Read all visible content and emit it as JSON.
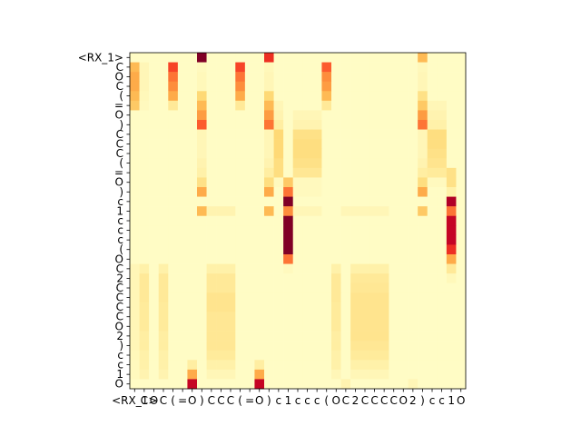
{
  "chart_data": {
    "type": "heatmap",
    "title": "",
    "xlabel": "",
    "ylabel": "",
    "colormap": "YlOrRd",
    "color_stops": [
      "#ffffcc",
      "#ffeda0",
      "#fed976",
      "#feb24c",
      "#fd8d3c",
      "#fc4e2a",
      "#e31a1c",
      "#bd0026",
      "#800026"
    ],
    "x_tokens": [
      "<RX_1>",
      "C",
      "O",
      "C",
      "(",
      "=",
      "O",
      ")",
      "C",
      "C",
      "C",
      "(",
      "=",
      "O",
      ")",
      "c",
      "1",
      "c",
      "c",
      "c",
      "(",
      "O",
      "C",
      "2",
      "C",
      "C",
      "C",
      "C",
      "O",
      "2",
      ")",
      "c",
      "c",
      "1",
      "O"
    ],
    "y_tokens": [
      "<RX_1>",
      "C",
      "O",
      "C",
      "(",
      "=",
      "O",
      ")",
      "C",
      "C",
      "C",
      "(",
      "=",
      "O",
      ")",
      "c",
      "1",
      "c",
      "c",
      "c",
      "(",
      "O",
      "C",
      "2",
      "C",
      "C",
      "C",
      "C",
      "O",
      "2",
      ")",
      "c",
      "c",
      "1",
      "O"
    ],
    "values": [
      [
        0.02,
        0.02,
        0.02,
        0.02,
        0.02,
        0.02,
        0.02,
        1.0,
        0.02,
        0.02,
        0.02,
        0.02,
        0.02,
        0.02,
        0.7,
        0.02,
        0.02,
        0.02,
        0.02,
        0.02,
        0.02,
        0.02,
        0.02,
        0.02,
        0.02,
        0.02,
        0.02,
        0.02,
        0.02,
        0.02,
        0.35,
        0.02,
        0.02,
        0.02,
        0.02
      ],
      [
        0.35,
        0.06,
        0.02,
        0.02,
        0.65,
        0.02,
        0.02,
        0.04,
        0.02,
        0.02,
        0.02,
        0.65,
        0.02,
        0.02,
        0.05,
        0.02,
        0.02,
        0.02,
        0.02,
        0.02,
        0.6,
        0.02,
        0.02,
        0.02,
        0.02,
        0.02,
        0.02,
        0.02,
        0.02,
        0.02,
        0.05,
        0.02,
        0.02,
        0.02,
        0.02
      ],
      [
        0.4,
        0.06,
        0.02,
        0.02,
        0.55,
        0.02,
        0.02,
        0.05,
        0.02,
        0.02,
        0.02,
        0.55,
        0.02,
        0.02,
        0.06,
        0.02,
        0.02,
        0.02,
        0.02,
        0.02,
        0.5,
        0.02,
        0.02,
        0.02,
        0.02,
        0.02,
        0.02,
        0.02,
        0.02,
        0.02,
        0.06,
        0.02,
        0.02,
        0.02,
        0.02
      ],
      [
        0.4,
        0.06,
        0.02,
        0.02,
        0.5,
        0.02,
        0.02,
        0.05,
        0.02,
        0.02,
        0.02,
        0.5,
        0.02,
        0.02,
        0.06,
        0.02,
        0.02,
        0.02,
        0.02,
        0.02,
        0.45,
        0.02,
        0.02,
        0.02,
        0.02,
        0.02,
        0.02,
        0.02,
        0.02,
        0.02,
        0.06,
        0.02,
        0.02,
        0.02,
        0.02
      ],
      [
        0.35,
        0.05,
        0.02,
        0.02,
        0.4,
        0.02,
        0.02,
        0.25,
        0.02,
        0.02,
        0.02,
        0.4,
        0.02,
        0.02,
        0.25,
        0.02,
        0.02,
        0.02,
        0.02,
        0.02,
        0.35,
        0.02,
        0.02,
        0.02,
        0.02,
        0.02,
        0.02,
        0.02,
        0.02,
        0.02,
        0.2,
        0.02,
        0.02,
        0.02,
        0.02
      ],
      [
        0.3,
        0.04,
        0.02,
        0.02,
        0.15,
        0.02,
        0.02,
        0.35,
        0.02,
        0.02,
        0.02,
        0.15,
        0.02,
        0.02,
        0.35,
        0.06,
        0.02,
        0.02,
        0.02,
        0.02,
        0.15,
        0.02,
        0.02,
        0.02,
        0.02,
        0.02,
        0.02,
        0.02,
        0.02,
        0.02,
        0.3,
        0.06,
        0.06,
        0.02,
        0.02
      ],
      [
        0.02,
        0.02,
        0.02,
        0.02,
        0.02,
        0.02,
        0.02,
        0.45,
        0.02,
        0.02,
        0.02,
        0.02,
        0.02,
        0.02,
        0.45,
        0.08,
        0.02,
        0.06,
        0.06,
        0.06,
        0.02,
        0.02,
        0.02,
        0.02,
        0.02,
        0.02,
        0.02,
        0.02,
        0.02,
        0.02,
        0.45,
        0.08,
        0.08,
        0.02,
        0.02
      ],
      [
        0.02,
        0.02,
        0.02,
        0.02,
        0.02,
        0.02,
        0.02,
        0.6,
        0.02,
        0.02,
        0.02,
        0.02,
        0.02,
        0.02,
        0.55,
        0.12,
        0.02,
        0.08,
        0.08,
        0.08,
        0.02,
        0.02,
        0.02,
        0.02,
        0.02,
        0.02,
        0.02,
        0.02,
        0.02,
        0.02,
        0.55,
        0.1,
        0.1,
        0.02,
        0.02
      ],
      [
        0.02,
        0.02,
        0.02,
        0.02,
        0.02,
        0.02,
        0.02,
        0.06,
        0.02,
        0.02,
        0.02,
        0.02,
        0.02,
        0.02,
        0.06,
        0.25,
        0.02,
        0.2,
        0.2,
        0.2,
        0.02,
        0.02,
        0.02,
        0.02,
        0.02,
        0.02,
        0.02,
        0.02,
        0.02,
        0.02,
        0.06,
        0.22,
        0.22,
        0.02,
        0.02
      ],
      [
        0.02,
        0.02,
        0.02,
        0.02,
        0.02,
        0.02,
        0.02,
        0.06,
        0.02,
        0.02,
        0.02,
        0.02,
        0.02,
        0.02,
        0.06,
        0.25,
        0.02,
        0.22,
        0.22,
        0.22,
        0.02,
        0.02,
        0.02,
        0.02,
        0.02,
        0.02,
        0.02,
        0.02,
        0.02,
        0.02,
        0.06,
        0.22,
        0.22,
        0.02,
        0.02
      ],
      [
        0.02,
        0.02,
        0.02,
        0.02,
        0.02,
        0.02,
        0.02,
        0.06,
        0.02,
        0.02,
        0.02,
        0.02,
        0.02,
        0.02,
        0.06,
        0.25,
        0.02,
        0.22,
        0.22,
        0.22,
        0.02,
        0.02,
        0.02,
        0.02,
        0.02,
        0.02,
        0.02,
        0.02,
        0.02,
        0.02,
        0.06,
        0.2,
        0.2,
        0.02,
        0.02
      ],
      [
        0.02,
        0.02,
        0.02,
        0.02,
        0.02,
        0.02,
        0.02,
        0.08,
        0.02,
        0.02,
        0.02,
        0.02,
        0.02,
        0.02,
        0.08,
        0.22,
        0.02,
        0.2,
        0.2,
        0.2,
        0.02,
        0.02,
        0.02,
        0.02,
        0.02,
        0.02,
        0.02,
        0.02,
        0.02,
        0.02,
        0.08,
        0.18,
        0.18,
        0.02,
        0.02
      ],
      [
        0.02,
        0.02,
        0.02,
        0.02,
        0.02,
        0.02,
        0.02,
        0.1,
        0.02,
        0.02,
        0.02,
        0.02,
        0.02,
        0.02,
        0.12,
        0.22,
        0.02,
        0.16,
        0.16,
        0.16,
        0.02,
        0.02,
        0.02,
        0.02,
        0.02,
        0.02,
        0.02,
        0.02,
        0.02,
        0.02,
        0.12,
        0.14,
        0.14,
        0.2,
        0.02
      ],
      [
        0.02,
        0.02,
        0.02,
        0.02,
        0.02,
        0.02,
        0.02,
        0.2,
        0.02,
        0.02,
        0.02,
        0.02,
        0.02,
        0.02,
        0.22,
        0.04,
        0.3,
        0.04,
        0.04,
        0.04,
        0.02,
        0.02,
        0.02,
        0.02,
        0.02,
        0.02,
        0.02,
        0.02,
        0.02,
        0.02,
        0.22,
        0.04,
        0.04,
        0.2,
        0.02
      ],
      [
        0.02,
        0.02,
        0.02,
        0.02,
        0.02,
        0.02,
        0.02,
        0.4,
        0.02,
        0.02,
        0.02,
        0.02,
        0.02,
        0.02,
        0.4,
        0.02,
        0.55,
        0.04,
        0.04,
        0.04,
        0.02,
        0.02,
        0.02,
        0.02,
        0.02,
        0.02,
        0.02,
        0.02,
        0.02,
        0.02,
        0.4,
        0.02,
        0.02,
        0.1,
        0.02
      ],
      [
        0.02,
        0.02,
        0.02,
        0.02,
        0.02,
        0.02,
        0.02,
        0.02,
        0.02,
        0.02,
        0.02,
        0.02,
        0.02,
        0.02,
        0.02,
        0.02,
        1.0,
        0.02,
        0.02,
        0.02,
        0.02,
        0.02,
        0.02,
        0.02,
        0.02,
        0.02,
        0.02,
        0.02,
        0.02,
        0.02,
        0.02,
        0.02,
        0.02,
        0.9,
        0.02
      ],
      [
        0.02,
        0.02,
        0.02,
        0.02,
        0.02,
        0.02,
        0.02,
        0.35,
        0.08,
        0.08,
        0.08,
        0.02,
        0.02,
        0.02,
        0.35,
        0.02,
        0.5,
        0.06,
        0.06,
        0.06,
        0.02,
        0.02,
        0.06,
        0.06,
        0.06,
        0.06,
        0.06,
        0.02,
        0.02,
        0.02,
        0.3,
        0.02,
        0.02,
        0.55,
        0.02
      ],
      [
        0.02,
        0.02,
        0.02,
        0.02,
        0.02,
        0.02,
        0.02,
        0.02,
        0.02,
        0.02,
        0.02,
        0.02,
        0.02,
        0.02,
        0.02,
        0.02,
        1.0,
        0.02,
        0.02,
        0.02,
        0.02,
        0.02,
        0.02,
        0.02,
        0.02,
        0.02,
        0.02,
        0.02,
        0.02,
        0.02,
        0.02,
        0.02,
        0.02,
        0.85,
        0.02
      ],
      [
        0.02,
        0.02,
        0.02,
        0.02,
        0.02,
        0.02,
        0.02,
        0.02,
        0.02,
        0.02,
        0.02,
        0.02,
        0.02,
        0.02,
        0.02,
        0.02,
        1.0,
        0.02,
        0.02,
        0.02,
        0.02,
        0.02,
        0.02,
        0.02,
        0.02,
        0.02,
        0.02,
        0.02,
        0.02,
        0.02,
        0.02,
        0.02,
        0.02,
        0.85,
        0.02
      ],
      [
        0.02,
        0.02,
        0.02,
        0.02,
        0.02,
        0.02,
        0.02,
        0.02,
        0.02,
        0.02,
        0.02,
        0.02,
        0.02,
        0.02,
        0.02,
        0.02,
        1.0,
        0.02,
        0.02,
        0.02,
        0.02,
        0.02,
        0.02,
        0.02,
        0.02,
        0.02,
        0.02,
        0.02,
        0.02,
        0.02,
        0.02,
        0.02,
        0.02,
        0.85,
        0.02
      ],
      [
        0.02,
        0.02,
        0.02,
        0.02,
        0.02,
        0.02,
        0.02,
        0.02,
        0.02,
        0.02,
        0.02,
        0.02,
        0.02,
        0.02,
        0.02,
        0.02,
        1.0,
        0.02,
        0.02,
        0.02,
        0.02,
        0.02,
        0.02,
        0.02,
        0.02,
        0.02,
        0.02,
        0.02,
        0.02,
        0.02,
        0.02,
        0.02,
        0.02,
        0.7,
        0.02
      ],
      [
        0.02,
        0.02,
        0.02,
        0.02,
        0.02,
        0.02,
        0.02,
        0.02,
        0.02,
        0.02,
        0.02,
        0.02,
        0.02,
        0.02,
        0.02,
        0.02,
        0.55,
        0.02,
        0.02,
        0.02,
        0.02,
        0.02,
        0.02,
        0.02,
        0.02,
        0.02,
        0.02,
        0.02,
        0.02,
        0.02,
        0.02,
        0.02,
        0.02,
        0.4,
        0.02
      ],
      [
        0.06,
        0.1,
        0.02,
        0.1,
        0.02,
        0.02,
        0.02,
        0.02,
        0.1,
        0.1,
        0.1,
        0.02,
        0.02,
        0.02,
        0.02,
        0.02,
        0.04,
        0.02,
        0.02,
        0.02,
        0.02,
        0.1,
        0.02,
        0.1,
        0.1,
        0.1,
        0.1,
        0.02,
        0.02,
        0.02,
        0.02,
        0.02,
        0.02,
        0.15,
        0.02
      ],
      [
        0.06,
        0.15,
        0.02,
        0.15,
        0.02,
        0.02,
        0.02,
        0.02,
        0.15,
        0.15,
        0.15,
        0.02,
        0.02,
        0.02,
        0.02,
        0.02,
        0.02,
        0.02,
        0.02,
        0.02,
        0.02,
        0.15,
        0.02,
        0.15,
        0.15,
        0.15,
        0.15,
        0.02,
        0.02,
        0.02,
        0.02,
        0.02,
        0.02,
        0.05,
        0.02
      ],
      [
        0.06,
        0.15,
        0.02,
        0.15,
        0.02,
        0.02,
        0.02,
        0.02,
        0.15,
        0.15,
        0.15,
        0.02,
        0.02,
        0.02,
        0.02,
        0.02,
        0.02,
        0.02,
        0.02,
        0.02,
        0.02,
        0.15,
        0.02,
        0.16,
        0.16,
        0.16,
        0.16,
        0.02,
        0.02,
        0.02,
        0.02,
        0.02,
        0.02,
        0.02,
        0.02
      ],
      [
        0.06,
        0.15,
        0.02,
        0.15,
        0.02,
        0.02,
        0.02,
        0.02,
        0.18,
        0.18,
        0.18,
        0.02,
        0.02,
        0.02,
        0.02,
        0.02,
        0.02,
        0.02,
        0.02,
        0.02,
        0.02,
        0.15,
        0.02,
        0.18,
        0.18,
        0.18,
        0.18,
        0.02,
        0.02,
        0.02,
        0.02,
        0.02,
        0.02,
        0.02,
        0.02
      ],
      [
        0.06,
        0.14,
        0.02,
        0.14,
        0.02,
        0.02,
        0.02,
        0.02,
        0.18,
        0.18,
        0.18,
        0.02,
        0.02,
        0.02,
        0.02,
        0.02,
        0.02,
        0.02,
        0.02,
        0.02,
        0.02,
        0.14,
        0.02,
        0.18,
        0.18,
        0.18,
        0.18,
        0.02,
        0.02,
        0.02,
        0.02,
        0.02,
        0.02,
        0.02,
        0.02
      ],
      [
        0.06,
        0.14,
        0.02,
        0.14,
        0.02,
        0.02,
        0.02,
        0.02,
        0.16,
        0.16,
        0.16,
        0.02,
        0.02,
        0.02,
        0.02,
        0.02,
        0.02,
        0.02,
        0.02,
        0.02,
        0.02,
        0.14,
        0.02,
        0.18,
        0.18,
        0.18,
        0.18,
        0.02,
        0.02,
        0.02,
        0.02,
        0.02,
        0.02,
        0.02,
        0.02
      ],
      [
        0.06,
        0.14,
        0.02,
        0.14,
        0.02,
        0.02,
        0.02,
        0.02,
        0.16,
        0.16,
        0.16,
        0.02,
        0.02,
        0.02,
        0.02,
        0.02,
        0.02,
        0.02,
        0.02,
        0.02,
        0.02,
        0.14,
        0.02,
        0.18,
        0.18,
        0.18,
        0.18,
        0.02,
        0.02,
        0.02,
        0.02,
        0.02,
        0.02,
        0.02,
        0.02
      ],
      [
        0.06,
        0.12,
        0.02,
        0.12,
        0.02,
        0.02,
        0.02,
        0.02,
        0.16,
        0.16,
        0.16,
        0.02,
        0.02,
        0.02,
        0.02,
        0.02,
        0.02,
        0.02,
        0.02,
        0.02,
        0.02,
        0.12,
        0.02,
        0.18,
        0.18,
        0.18,
        0.18,
        0.02,
        0.02,
        0.02,
        0.02,
        0.02,
        0.02,
        0.02,
        0.02
      ],
      [
        0.06,
        0.12,
        0.02,
        0.12,
        0.02,
        0.02,
        0.02,
        0.02,
        0.16,
        0.16,
        0.16,
        0.02,
        0.02,
        0.02,
        0.02,
        0.02,
        0.02,
        0.02,
        0.02,
        0.02,
        0.02,
        0.12,
        0.02,
        0.16,
        0.16,
        0.16,
        0.16,
        0.02,
        0.02,
        0.02,
        0.02,
        0.02,
        0.02,
        0.02,
        0.02
      ],
      [
        0.05,
        0.1,
        0.02,
        0.1,
        0.02,
        0.02,
        0.02,
        0.02,
        0.14,
        0.14,
        0.14,
        0.02,
        0.02,
        0.02,
        0.02,
        0.02,
        0.02,
        0.02,
        0.02,
        0.02,
        0.02,
        0.1,
        0.02,
        0.14,
        0.14,
        0.14,
        0.14,
        0.02,
        0.02,
        0.02,
        0.02,
        0.02,
        0.02,
        0.02,
        0.02
      ],
      [
        0.04,
        0.1,
        0.02,
        0.1,
        0.02,
        0.02,
        0.12,
        0.02,
        0.1,
        0.1,
        0.1,
        0.02,
        0.02,
        0.12,
        0.02,
        0.02,
        0.02,
        0.02,
        0.02,
        0.02,
        0.02,
        0.1,
        0.02,
        0.1,
        0.1,
        0.1,
        0.1,
        0.02,
        0.02,
        0.02,
        0.02,
        0.02,
        0.02,
        0.02,
        0.02
      ],
      [
        0.04,
        0.08,
        0.02,
        0.08,
        0.02,
        0.02,
        0.4,
        0.02,
        0.06,
        0.06,
        0.06,
        0.02,
        0.02,
        0.4,
        0.02,
        0.02,
        0.02,
        0.02,
        0.02,
        0.02,
        0.02,
        0.06,
        0.02,
        0.06,
        0.06,
        0.06,
        0.06,
        0.02,
        0.02,
        0.02,
        0.02,
        0.02,
        0.02,
        0.02,
        0.02
      ],
      [
        0.02,
        0.02,
        0.02,
        0.02,
        0.02,
        0.02,
        0.85,
        0.02,
        0.02,
        0.02,
        0.02,
        0.02,
        0.02,
        0.85,
        0.02,
        0.02,
        0.02,
        0.02,
        0.02,
        0.02,
        0.02,
        0.02,
        0.08,
        0.02,
        0.02,
        0.02,
        0.02,
        0.02,
        0.02,
        0.06,
        0.02,
        0.02,
        0.02,
        0.02,
        0.02
      ]
    ]
  }
}
